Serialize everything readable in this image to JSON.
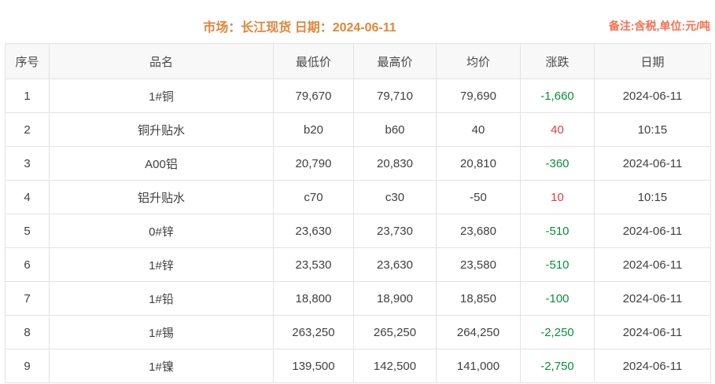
{
  "header": {
    "title": "市场：长江现货  日期：2024-06-11",
    "note": "备注:含税,单位:元/吨"
  },
  "table": {
    "columns": [
      "序号",
      "品名",
      "最低价",
      "最高价",
      "均价",
      "涨跌",
      "日期"
    ],
    "rows": [
      {
        "seq": "1",
        "name": "1#铜",
        "low": "79,670",
        "high": "79,710",
        "avg": "79,690",
        "change": "-1,660",
        "change_dir": "down",
        "date": "2024-06-11"
      },
      {
        "seq": "2",
        "name": "铜升贴水",
        "low": "b20",
        "high": "b60",
        "avg": "40",
        "change": "40",
        "change_dir": "up",
        "date": "10:15"
      },
      {
        "seq": "3",
        "name": "A00铝",
        "low": "20,790",
        "high": "20,830",
        "avg": "20,810",
        "change": "-360",
        "change_dir": "down",
        "date": "2024-06-11"
      },
      {
        "seq": "4",
        "name": "铝升贴水",
        "low": "c70",
        "high": "c30",
        "avg": "-50",
        "change": "10",
        "change_dir": "up",
        "date": "10:15"
      },
      {
        "seq": "5",
        "name": "0#锌",
        "low": "23,630",
        "high": "23,730",
        "avg": "23,680",
        "change": "-510",
        "change_dir": "down",
        "date": "2024-06-11"
      },
      {
        "seq": "6",
        "name": "1#锌",
        "low": "23,530",
        "high": "23,630",
        "avg": "23,580",
        "change": "-510",
        "change_dir": "down",
        "date": "2024-06-11"
      },
      {
        "seq": "7",
        "name": "1#铅",
        "low": "18,800",
        "high": "18,900",
        "avg": "18,850",
        "change": "-100",
        "change_dir": "down",
        "date": "2024-06-11"
      },
      {
        "seq": "8",
        "name": "1#锡",
        "low": "263,250",
        "high": "265,250",
        "avg": "264,250",
        "change": "-2,250",
        "change_dir": "down",
        "date": "2024-06-11"
      },
      {
        "seq": "9",
        "name": "1#镍",
        "low": "139,500",
        "high": "142,500",
        "avg": "141,000",
        "change": "-2,750",
        "change_dir": "down",
        "date": "2024-06-11"
      }
    ]
  },
  "colors": {
    "title_orange": "#e2853b",
    "note_orange": "#fa6e4e",
    "up_red": "#e23b3f",
    "down_green": "#089038",
    "border": "#e3e3e3",
    "header_bg": "#f8f8f8",
    "text": "#404040"
  }
}
